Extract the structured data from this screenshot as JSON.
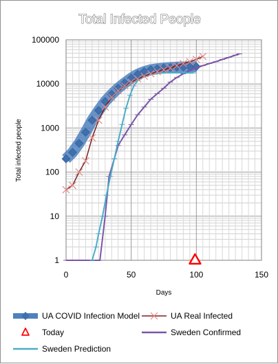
{
  "chart_data": {
    "type": "line",
    "title": "Total Infected People",
    "xlabel": "Days",
    "ylabel": "Total infected people",
    "xlim": [
      0,
      150
    ],
    "ylim": [
      1,
      100000
    ],
    "yscale": "log",
    "grid": true,
    "legend_position": "bottom",
    "x_ticks": [
      "0",
      "50",
      "100",
      "150"
    ],
    "y_ticks": [
      "1",
      "10",
      "100",
      "1000",
      "10000",
      "100000"
    ],
    "series": [
      {
        "name": "UA COVID Infection Model",
        "color": "#4f81bd",
        "x": [
          0,
          5,
          10,
          15,
          20,
          25,
          30,
          35,
          40,
          45,
          50,
          55,
          60,
          65,
          70,
          75,
          80,
          85,
          90,
          95,
          100
        ],
        "y": [
          200,
          280,
          450,
          800,
          1500,
          2500,
          4000,
          5800,
          8000,
          10500,
          13500,
          16500,
          19000,
          21000,
          22000,
          23000,
          23500,
          24000,
          24200,
          24500,
          24700
        ]
      },
      {
        "name": "UA Real Infected",
        "color": "#c0504d",
        "x": [
          0,
          5,
          10,
          15,
          20,
          25,
          30,
          35,
          40,
          45,
          50,
          55,
          60,
          65,
          70,
          75,
          80,
          85,
          90,
          95,
          100,
          105
        ],
        "y": [
          40,
          50,
          100,
          180,
          600,
          1500,
          3000,
          5000,
          7000,
          9000,
          11000,
          13000,
          15000,
          17000,
          19000,
          21000,
          23000,
          26000,
          29000,
          32000,
          36000,
          42000
        ]
      },
      {
        "name": "Sweden Confirmed",
        "color": "#7a55a6",
        "x": [
          0,
          10,
          20,
          26,
          30,
          33,
          37,
          40,
          45,
          50,
          55,
          60,
          65,
          70,
          75,
          80,
          85,
          90,
          95,
          100,
          105,
          110,
          115,
          120,
          125,
          130,
          133
        ],
        "y": [
          1,
          1,
          1,
          1,
          10,
          80,
          200,
          400,
          700,
          1200,
          2000,
          3000,
          4500,
          6000,
          8000,
          11000,
          14000,
          17000,
          20000,
          23000,
          26000,
          29000,
          32000,
          36000,
          40000,
          45000,
          48000
        ]
      },
      {
        "name": "Sweden Prediction",
        "color": "#4bacc6",
        "x": [
          20,
          23,
          25,
          28,
          31,
          34,
          37,
          40,
          43,
          46,
          49,
          52,
          55,
          60,
          65,
          70,
          75,
          80,
          85,
          90,
          95,
          98
        ],
        "y": [
          1,
          2,
          4,
          10,
          30,
          80,
          200,
          500,
          1200,
          2800,
          5500,
          9000,
          12000,
          15000,
          16500,
          17500,
          17800,
          17900,
          17900,
          17800,
          17800,
          17800
        ]
      },
      {
        "name": "Today",
        "color": "#ff0000",
        "marker": "triangle",
        "x": [
          99
        ],
        "y": [
          1
        ]
      }
    ]
  }
}
